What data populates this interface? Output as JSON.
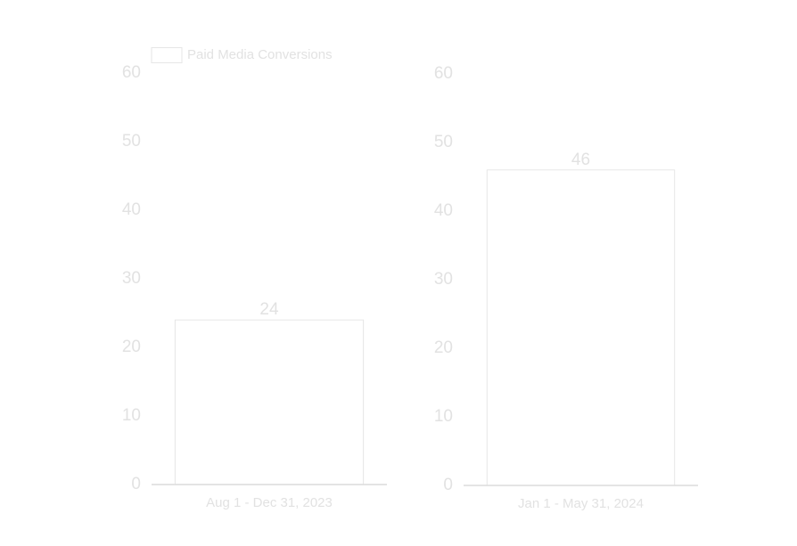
{
  "chart_data": [
    {
      "type": "bar",
      "categories": [
        "Aug 1 - Dec 31, 2023"
      ],
      "series": [
        {
          "name": "Paid Media Conversions",
          "color": "#ffffff",
          "values": [
            24
          ]
        }
      ],
      "edge_color": "#e6e6e6",
      "ylim": [
        0,
        60
      ],
      "yticks": [
        0,
        10,
        20,
        30,
        40,
        50,
        60
      ],
      "legend": "top-left"
    },
    {
      "type": "bar",
      "categories": [
        "Jan 1 - May 31, 2024"
      ],
      "series": [
        {
          "color": "#ffffff",
          "values": [
            46
          ]
        }
      ],
      "edge_color": "#e6e6e6",
      "ylim": [
        0,
        60
      ],
      "yticks": [
        0,
        10,
        20,
        30,
        40,
        50,
        60
      ]
    }
  ]
}
